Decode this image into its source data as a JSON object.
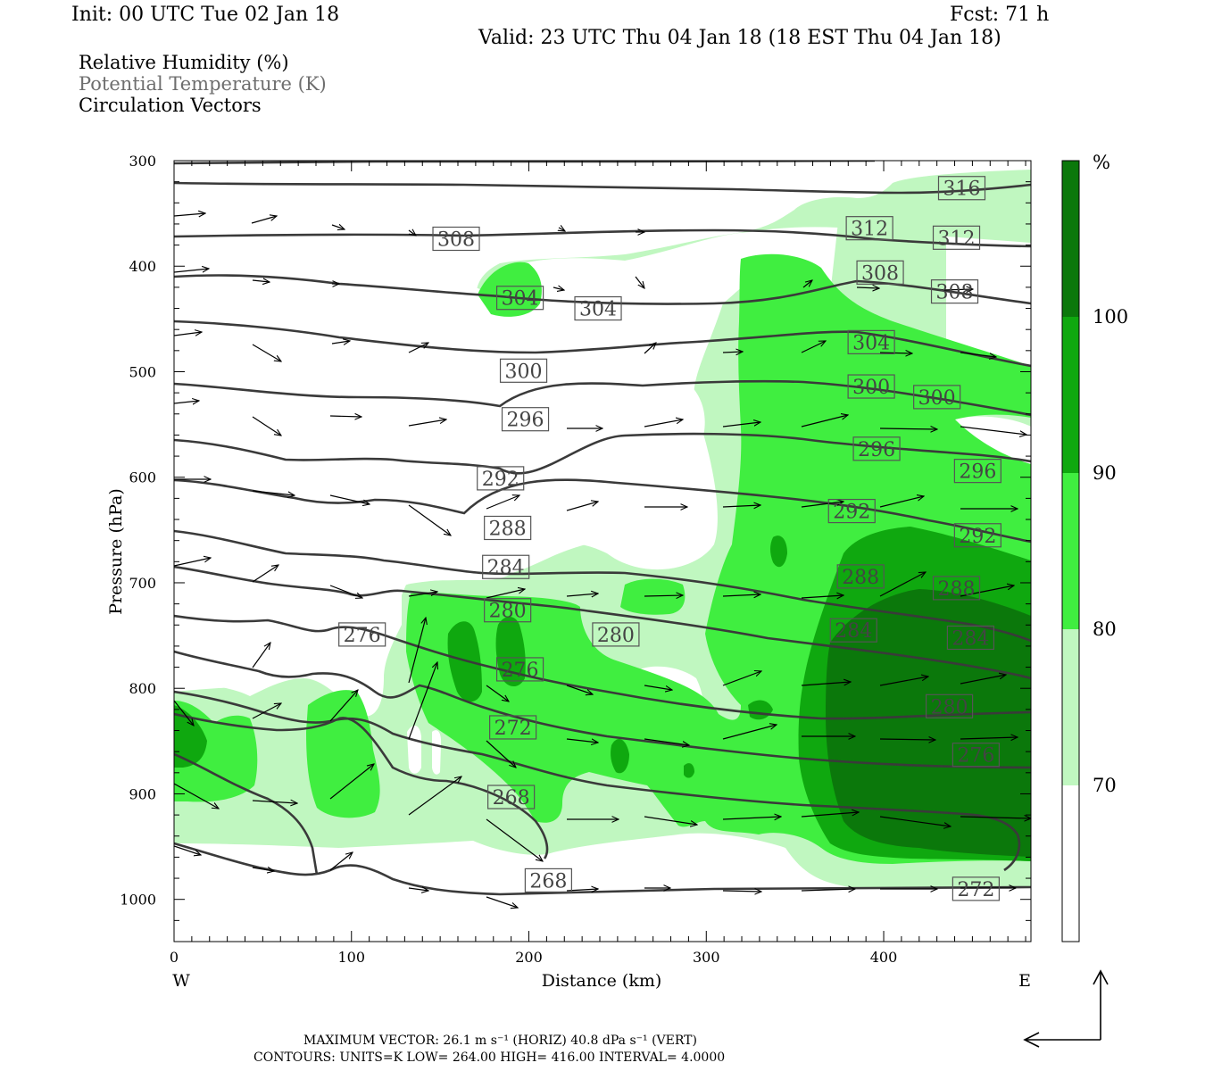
{
  "header": {
    "init": "Init: 00 UTC Tue 02 Jan 18",
    "fcst": "Fcst:   71 h",
    "valid": "Valid: 23 UTC Thu 04 Jan 18 (18 EST Thu 04 Jan 18)"
  },
  "legend": {
    "rh": "Relative Humidity (%)",
    "theta": "Potential Temperature (K)",
    "vectors": "Circulation Vectors"
  },
  "footer": {
    "line1": "MAXIMUM VECTOR:  26.1 m s⁻¹ (HORIZ)         40.8 dPa s⁻¹ (VERT)",
    "line2": "CONTOURS:  UNITS=K  LOW=  264.00        HIGH=  416.00         INTERVAL=    4.0000"
  },
  "colors": {
    "rh_70_80": "#c0f7c0",
    "rh_80_90": "#40ee40",
    "rh_90_100": "#0fa80f",
    "rh_100": "#0b780b",
    "contour": "#3a3a3a"
  },
  "chart_data": {
    "type": "cross-section",
    "xlabel": "Distance (km)",
    "ylabel": "Pressure (hPa)",
    "x_ticks": [
      0,
      100,
      200,
      300,
      400
    ],
    "y_ticks": [
      300,
      400,
      500,
      600,
      700,
      800,
      900,
      1000
    ],
    "xlim": [
      0,
      483
    ],
    "ylim": [
      1040,
      300
    ],
    "x_end_labels": {
      "left": "W",
      "right": "E"
    },
    "colorbar": {
      "unit": "%",
      "levels": [
        70,
        80,
        90,
        100
      ],
      "labels": [
        "70",
        "80",
        "90",
        "100"
      ]
    },
    "theta_labels": [
      {
        "text": "316",
        "x": 444,
        "p": 326
      },
      {
        "text": "312",
        "x": 392,
        "p": 364
      },
      {
        "text": "312",
        "x": 441,
        "p": 373
      },
      {
        "text": "308",
        "x": 159,
        "p": 374
      },
      {
        "text": "308",
        "x": 398,
        "p": 406
      },
      {
        "text": "308",
        "x": 440,
        "p": 424
      },
      {
        "text": "304",
        "x": 195,
        "p": 430
      },
      {
        "text": "304",
        "x": 239,
        "p": 440
      },
      {
        "text": "304",
        "x": 393,
        "p": 472
      },
      {
        "text": "300",
        "x": 197,
        "p": 499
      },
      {
        "text": "300",
        "x": 393,
        "p": 514
      },
      {
        "text": "300",
        "x": 430,
        "p": 524
      },
      {
        "text": "296",
        "x": 198,
        "p": 545
      },
      {
        "text": "296",
        "x": 396,
        "p": 573
      },
      {
        "text": "296",
        "x": 453,
        "p": 594
      },
      {
        "text": "292",
        "x": 184,
        "p": 601
      },
      {
        "text": "292",
        "x": 382,
        "p": 632
      },
      {
        "text": "292",
        "x": 453,
        "p": 655
      },
      {
        "text": "288",
        "x": 188,
        "p": 648
      },
      {
        "text": "284",
        "x": 187,
        "p": 685
      },
      {
        "text": "288",
        "x": 387,
        "p": 694
      },
      {
        "text": "288",
        "x": 441,
        "p": 705
      },
      {
        "text": "280",
        "x": 188,
        "p": 726
      },
      {
        "text": "284",
        "x": 383,
        "p": 745
      },
      {
        "text": "284",
        "x": 449,
        "p": 752
      },
      {
        "text": "276",
        "x": 106,
        "p": 749
      },
      {
        "text": "280",
        "x": 249,
        "p": 749
      },
      {
        "text": "276",
        "x": 195,
        "p": 782
      },
      {
        "text": "280",
        "x": 437,
        "p": 817
      },
      {
        "text": "272",
        "x": 191,
        "p": 837
      },
      {
        "text": "276",
        "x": 452,
        "p": 863
      },
      {
        "text": "268",
        "x": 190,
        "p": 903
      },
      {
        "text": "268",
        "x": 211,
        "p": 982
      },
      {
        "text": "272",
        "x": 452,
        "p": 990
      }
    ]
  }
}
